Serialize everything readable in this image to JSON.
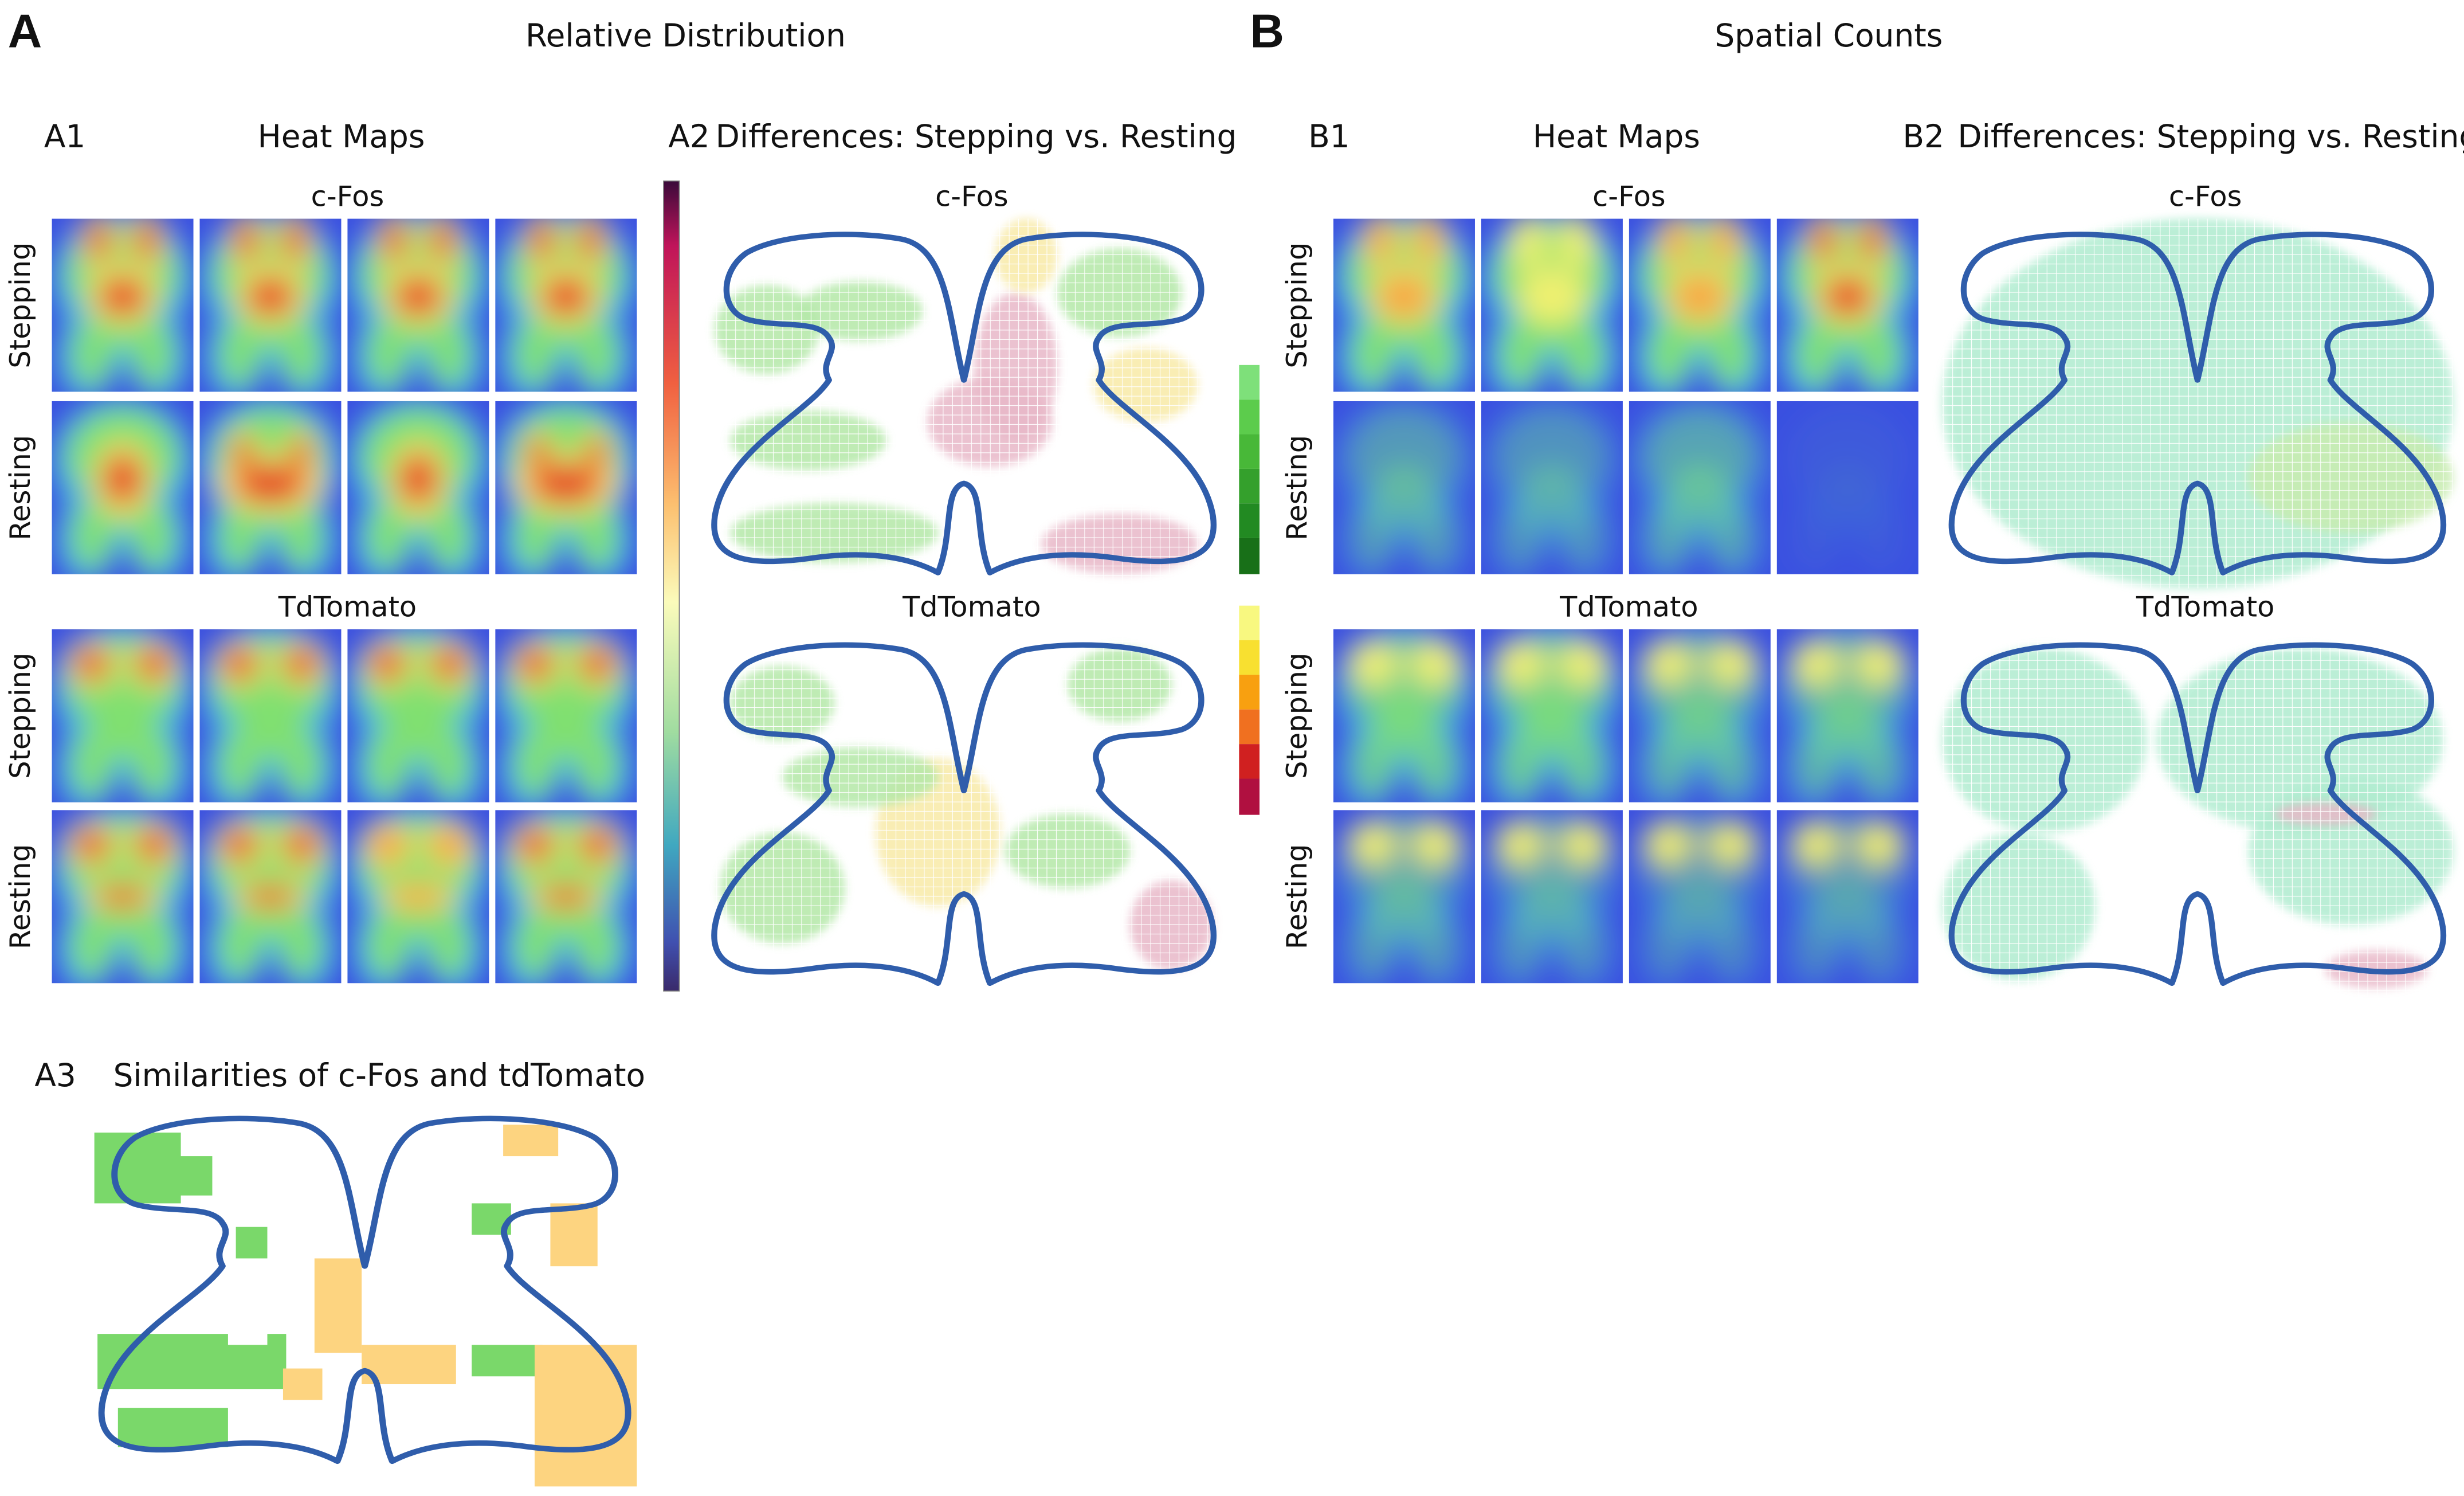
{
  "panels": [
    {
      "letter": "A",
      "title": "Relative Distribution",
      "heat_maps": {
        "label": "A1",
        "title": "Heat Maps",
        "groups": [
          {
            "name": "c-Fos",
            "rows": [
              "Stepping",
              "Resting"
            ]
          },
          {
            "name": "TdTomato",
            "rows": [
              "Stepping",
              "Resting"
            ]
          }
        ]
      },
      "differences": {
        "label": "A2",
        "title": "Differences: Stepping vs. Resting",
        "groups": [
          "c-Fos",
          "TdTomato"
        ]
      },
      "similarities": {
        "label": "A3",
        "title": "Similarities of c-Fos and tdTomato"
      }
    },
    {
      "letter": "B",
      "title": "Spatial Counts",
      "heat_maps": {
        "label": "B1",
        "title": "Heat Maps",
        "groups": [
          {
            "name": "c-Fos",
            "rows": [
              "Stepping",
              "Resting"
            ]
          },
          {
            "name": "TdTomato",
            "rows": [
              "Stepping",
              "Resting"
            ]
          }
        ]
      },
      "differences": {
        "label": "B2",
        "title": "Differences: Stepping vs. Resting",
        "groups": [
          "c-Fos",
          "TdTomato"
        ]
      }
    }
  ]
}
